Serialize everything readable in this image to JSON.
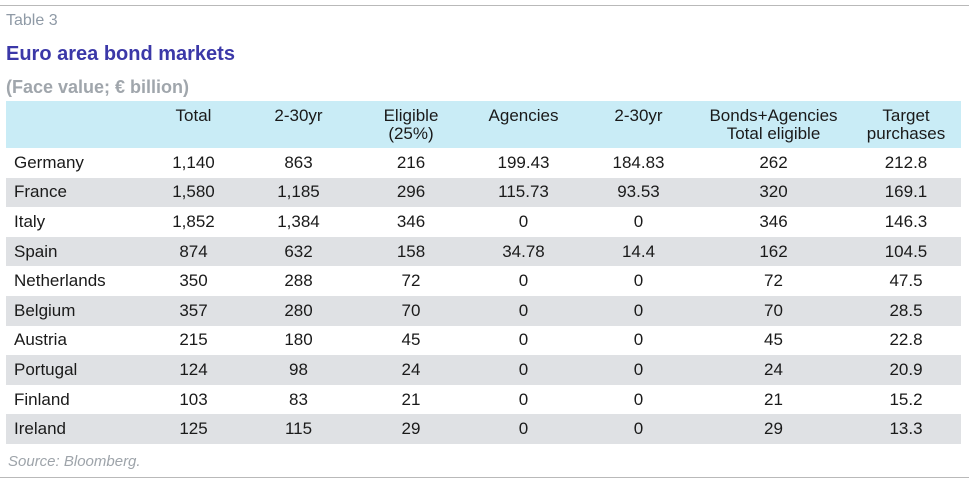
{
  "table_label": "Table 3",
  "title": "Euro area bond markets",
  "subtitle": "(Face value; € billion)",
  "source": "Source: Bloomberg.",
  "columns": [
    {
      "line1": "",
      "line2": ""
    },
    {
      "line1": "Total",
      "line2": ""
    },
    {
      "line1": "2-30yr",
      "line2": ""
    },
    {
      "line1": "Eligible",
      "line2": "(25%)"
    },
    {
      "line1": "Agencies",
      "line2": ""
    },
    {
      "line1": "2-30yr",
      "line2": ""
    },
    {
      "line1": "Bonds+Agencies",
      "line2": "Total eligible"
    },
    {
      "line1": "Target",
      "line2": "purchases"
    }
  ],
  "rows": [
    [
      "Germany",
      "1,140",
      "863",
      "216",
      "199.43",
      "184.83",
      "262",
      "212.8"
    ],
    [
      "France",
      "1,580",
      "1,185",
      "296",
      "115.73",
      "93.53",
      "320",
      "169.1"
    ],
    [
      "Italy",
      "1,852",
      "1,384",
      "346",
      "0",
      "0",
      "346",
      "146.3"
    ],
    [
      "Spain",
      "874",
      "632",
      "158",
      "34.78",
      "14.4",
      "162",
      "104.5"
    ],
    [
      "Netherlands",
      "350",
      "288",
      "72",
      "0",
      "0",
      "72",
      "47.5"
    ],
    [
      "Belgium",
      "357",
      "280",
      "70",
      "0",
      "0",
      "70",
      "28.5"
    ],
    [
      "Austria",
      "215",
      "180",
      "45",
      "0",
      "0",
      "45",
      "22.8"
    ],
    [
      "Portugal",
      "124",
      "98",
      "24",
      "0",
      "0",
      "24",
      "20.9"
    ],
    [
      "Finland",
      "103",
      "83",
      "21",
      "0",
      "0",
      "21",
      "15.2"
    ],
    [
      "Ireland",
      "125",
      "115",
      "29",
      "0",
      "0",
      "29",
      "13.3"
    ]
  ],
  "colors": {
    "title": "#3b38a8",
    "header_fill": "#c9ecf6",
    "row_shade": "#dfe1e4",
    "muted_text": "#a0a6ac"
  }
}
